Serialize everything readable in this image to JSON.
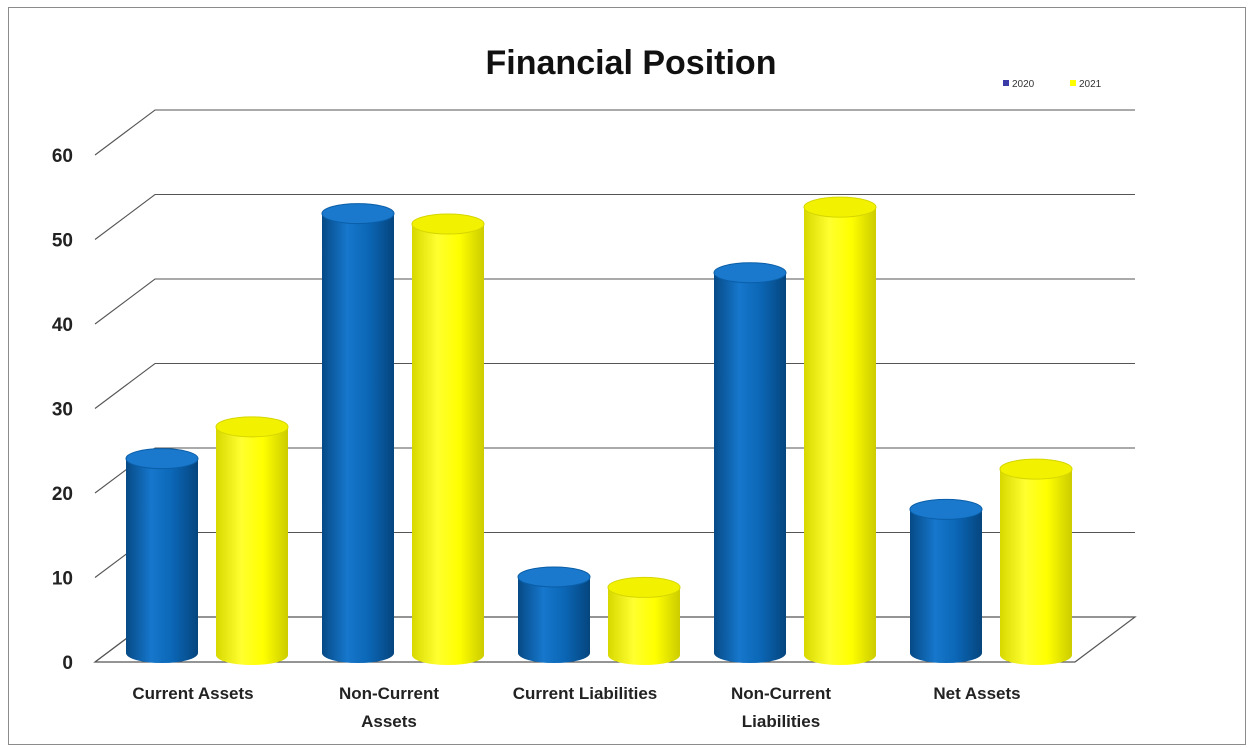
{
  "chart_data": {
    "type": "bar",
    "title": "Financial Position",
    "xlabel": "",
    "ylabel": "",
    "categories": [
      "Current Assets",
      "Non-Current Assets",
      "Current Liabilities",
      "Non-Current Liabilities",
      "Net Assets"
    ],
    "category_lines": [
      [
        "Current Assets"
      ],
      [
        "Non-Current",
        "Assets"
      ],
      [
        "Current Liabilities"
      ],
      [
        "Non-Current",
        "Liabilities"
      ],
      [
        "Net Assets"
      ]
    ],
    "series": [
      {
        "name": "2020",
        "color": "#0b66b5",
        "values": [
          23,
          52,
          9,
          45,
          17
        ]
      },
      {
        "name": "2021",
        "color": "#ffff00",
        "values": [
          27,
          51,
          8,
          53,
          22
        ]
      }
    ],
    "ylim": [
      0,
      60
    ],
    "yticks": [
      0,
      10,
      20,
      30,
      40,
      50,
      60
    ],
    "grid": true,
    "legend": "top-right",
    "style": "3d-cylinder"
  }
}
